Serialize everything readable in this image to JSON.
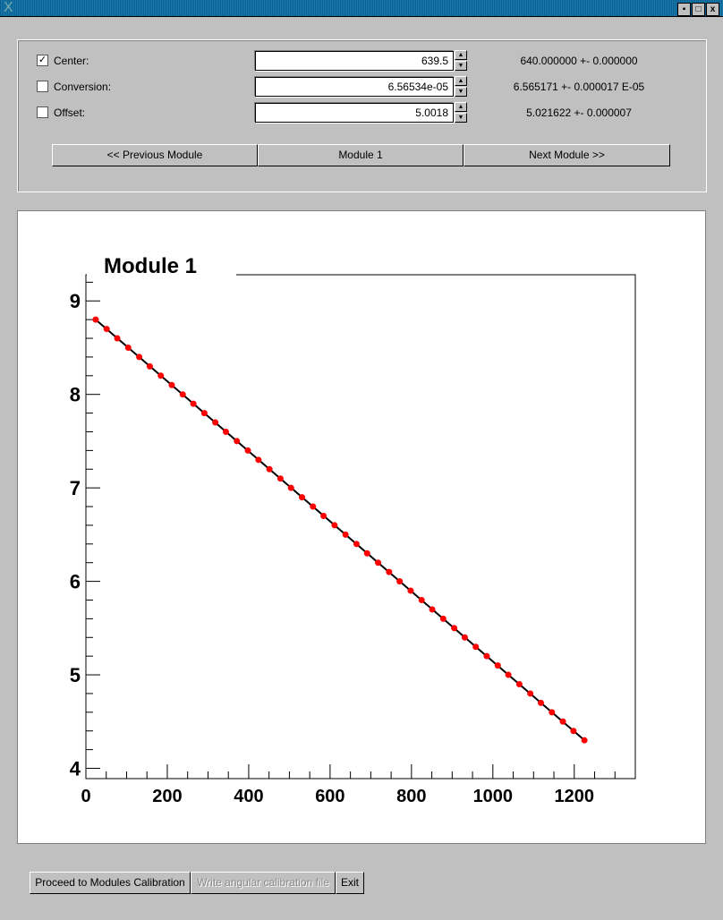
{
  "window": {
    "title": "",
    "controls": [
      "minimize-icon",
      "maximize-icon",
      "close-icon"
    ]
  },
  "params": [
    {
      "label": "Center:",
      "checked": true,
      "value": "639.5",
      "result": "640.000000 +- 0.000000"
    },
    {
      "label": "Conversion:",
      "checked": false,
      "value": "6.56534e-05",
      "result": "6.565171 +- 0.000017 E-05"
    },
    {
      "label": "Offset:",
      "checked": false,
      "value": "5.0018",
      "result": "5.021622 +- 0.000007"
    }
  ],
  "nav": {
    "prev": "<< Previous Module",
    "current": "Module 1",
    "next": "Next Module >>"
  },
  "bottom": {
    "proceed": "Proceed to Modules Calibration",
    "write": "Write angular calibration file",
    "exit": "Exit"
  },
  "chart_data": {
    "type": "scatter",
    "title": "Module 1",
    "xlabel": "",
    "ylabel": "",
    "xlim": [
      0,
      1350
    ],
    "ylim": [
      3.89,
      9.28
    ],
    "xticks": [
      0,
      200,
      400,
      600,
      800,
      1000,
      1200
    ],
    "yticks": [
      4,
      5,
      6,
      7,
      8,
      9
    ],
    "grid": false,
    "marker_color": "#ff0000",
    "fit_line_color": "#000000",
    "x": [
      24,
      51,
      77,
      104,
      131,
      157,
      184,
      211,
      238,
      264,
      291,
      318,
      344,
      371,
      398,
      424,
      451,
      478,
      504,
      531,
      558,
      584,
      611,
      638,
      665,
      691,
      718,
      745,
      771,
      798,
      825,
      851,
      878,
      905,
      931,
      958,
      985,
      1012,
      1038,
      1065,
      1092,
      1118,
      1145,
      1172,
      1198,
      1225
    ],
    "y": [
      8.8,
      8.7,
      8.6,
      8.5,
      8.4,
      8.3,
      8.2,
      8.1,
      8.0,
      7.9,
      7.8,
      7.7,
      7.6,
      7.5,
      7.4,
      7.3,
      7.2,
      7.1,
      7.0,
      6.9,
      6.8,
      6.7,
      6.6,
      6.5,
      6.4,
      6.3,
      6.2,
      6.1,
      6.0,
      5.9,
      5.8,
      5.7,
      5.6,
      5.5,
      5.4,
      5.3,
      5.2,
      5.1,
      5.0,
      4.9,
      4.8,
      4.7,
      4.6,
      4.5,
      4.4,
      4.3
    ]
  }
}
